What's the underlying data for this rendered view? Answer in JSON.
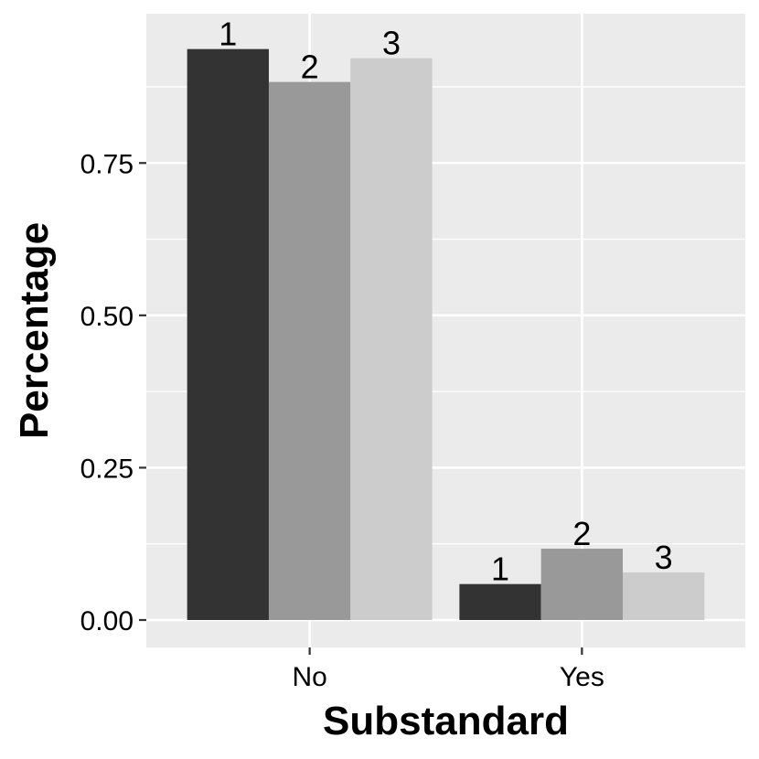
{
  "chart_data": {
    "type": "bar",
    "title": "",
    "xlabel": "Substandard",
    "ylabel": "Percentage",
    "categories": [
      "No",
      "Yes"
    ],
    "series": [
      {
        "name": "1",
        "values": [
          0.937,
          0.059
        ],
        "color": "#333333"
      },
      {
        "name": "2",
        "values": [
          0.883,
          0.117
        ],
        "color": "#999999"
      },
      {
        "name": "3",
        "values": [
          0.922,
          0.078
        ],
        "color": "#cccccc"
      }
    ],
    "bar_labels": [
      "1",
      "2",
      "3"
    ],
    "ylim": [
      -0.045,
      0.995
    ],
    "yticks": [
      0,
      0.25,
      0.5,
      0.75
    ],
    "ytick_labels": [
      "0.00",
      "0.25",
      "0.50",
      "0.75"
    ],
    "grid": true,
    "legend": "none",
    "panel_background": "#ebebeb",
    "gridline_color": "#ffffff"
  }
}
